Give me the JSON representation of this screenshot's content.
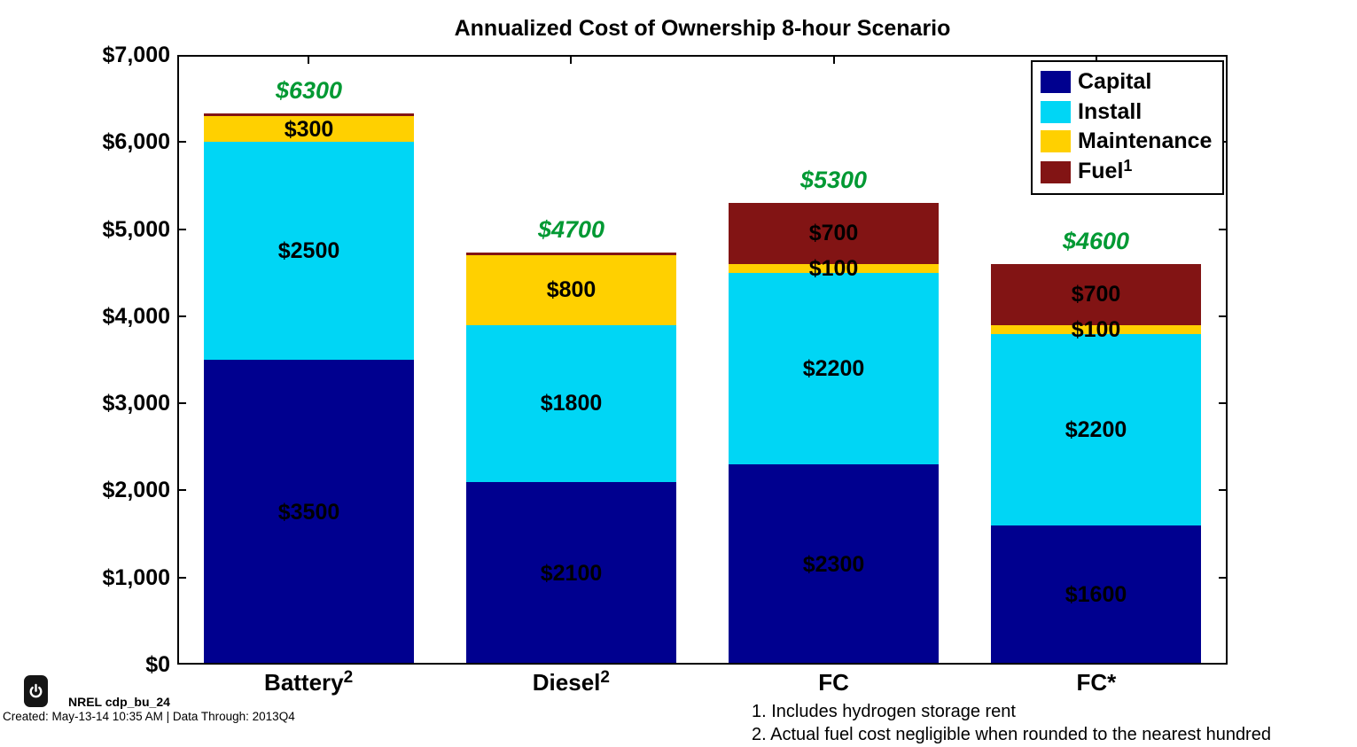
{
  "chart_data": {
    "type": "bar",
    "stacked": true,
    "title": "Annualized Cost of Ownership 8-hour Scenario",
    "categories": [
      {
        "label": "Battery",
        "superscript": "2"
      },
      {
        "label": "Diesel",
        "superscript": "2"
      },
      {
        "label": "FC",
        "superscript": ""
      },
      {
        "label": "FC*",
        "superscript": ""
      }
    ],
    "series": [
      {
        "name": "Capital",
        "superscript": "",
        "color": "#00008F",
        "values": [
          3500,
          2100,
          2300,
          1600
        ]
      },
      {
        "name": "Install",
        "superscript": "",
        "color": "#00D6F5",
        "values": [
          2500,
          1800,
          2200,
          2200
        ]
      },
      {
        "name": "Maintenance",
        "superscript": "",
        "color": "#FFD000",
        "values": [
          300,
          800,
          100,
          100
        ]
      },
      {
        "name": "Fuel",
        "superscript": "1",
        "color": "#821414",
        "values": [
          0,
          0,
          700,
          700
        ]
      }
    ],
    "segment_label_prefix": "$",
    "totals": [
      6300,
      4700,
      5300,
      4600
    ],
    "total_labels": [
      "$6300",
      "$4700",
      "$5300",
      "$4600"
    ],
    "total_color": "#009933",
    "ylim": [
      0,
      7000
    ],
    "ytick_values": [
      0,
      1000,
      2000,
      3000,
      4000,
      5000,
      6000,
      7000
    ],
    "ytick_labels": [
      "$0",
      "$1,000",
      "$2,000",
      "$3,000",
      "$4,000",
      "$5,000",
      "$6,000",
      "$7,000"
    ],
    "legend_position": "top-right",
    "grid": false,
    "bar_width_fraction": 0.8
  },
  "footnotes": [
    "1. Includes hydrogen storage rent",
    "2. Actual fuel cost negligible when rounded to the nearest hundred"
  ],
  "footer": {
    "power_icon": "power-icon",
    "report_id": "NREL cdp_bu_24",
    "created_line": "Created: May-13-14 10:35 AM | Data Through: 2013Q4"
  }
}
